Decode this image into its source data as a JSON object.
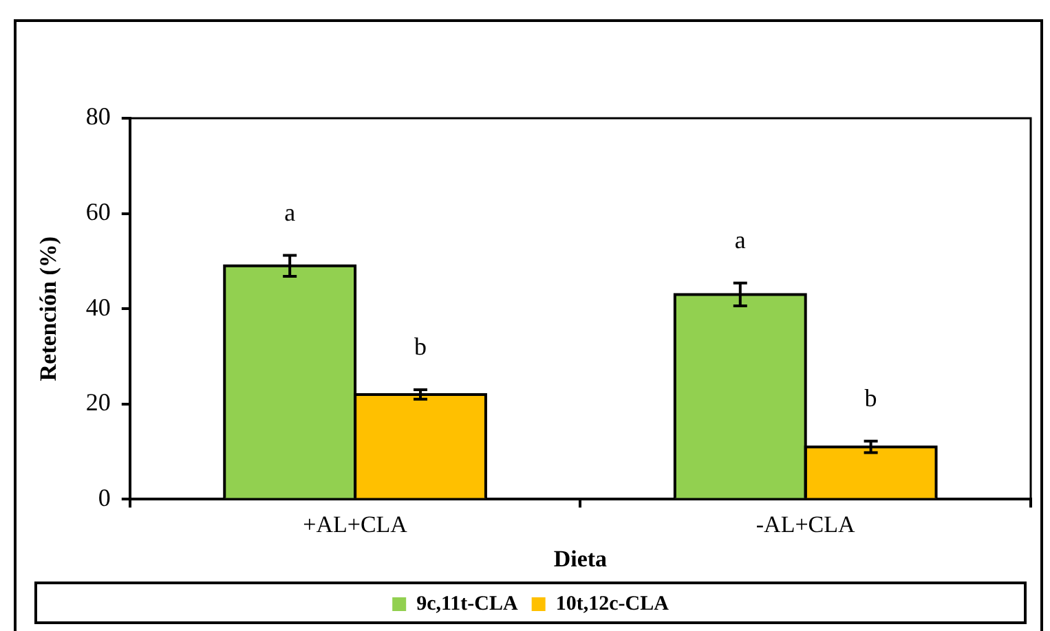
{
  "chart_data": {
    "type": "bar",
    "xlabel": "Dieta",
    "ylabel": "Retención (%)",
    "categories": [
      "+AL+CLA",
      "-AL+CLA"
    ],
    "series": [
      {
        "name": "9c,11t-CLA",
        "color": "#92d050",
        "values": [
          49,
          43
        ],
        "errors": [
          2.2,
          2.4
        ]
      },
      {
        "name": "10t,12c-CLA",
        "color": "#ffc000",
        "values": [
          22,
          11
        ],
        "errors": [
          1,
          1.2
        ]
      }
    ],
    "ylim": [
      0,
      80
    ],
    "yticks": [
      0,
      20,
      40,
      60,
      80
    ],
    "grid": false,
    "legend": "bottom",
    "annotations": [
      "a",
      "b",
      "a",
      "b"
    ]
  }
}
